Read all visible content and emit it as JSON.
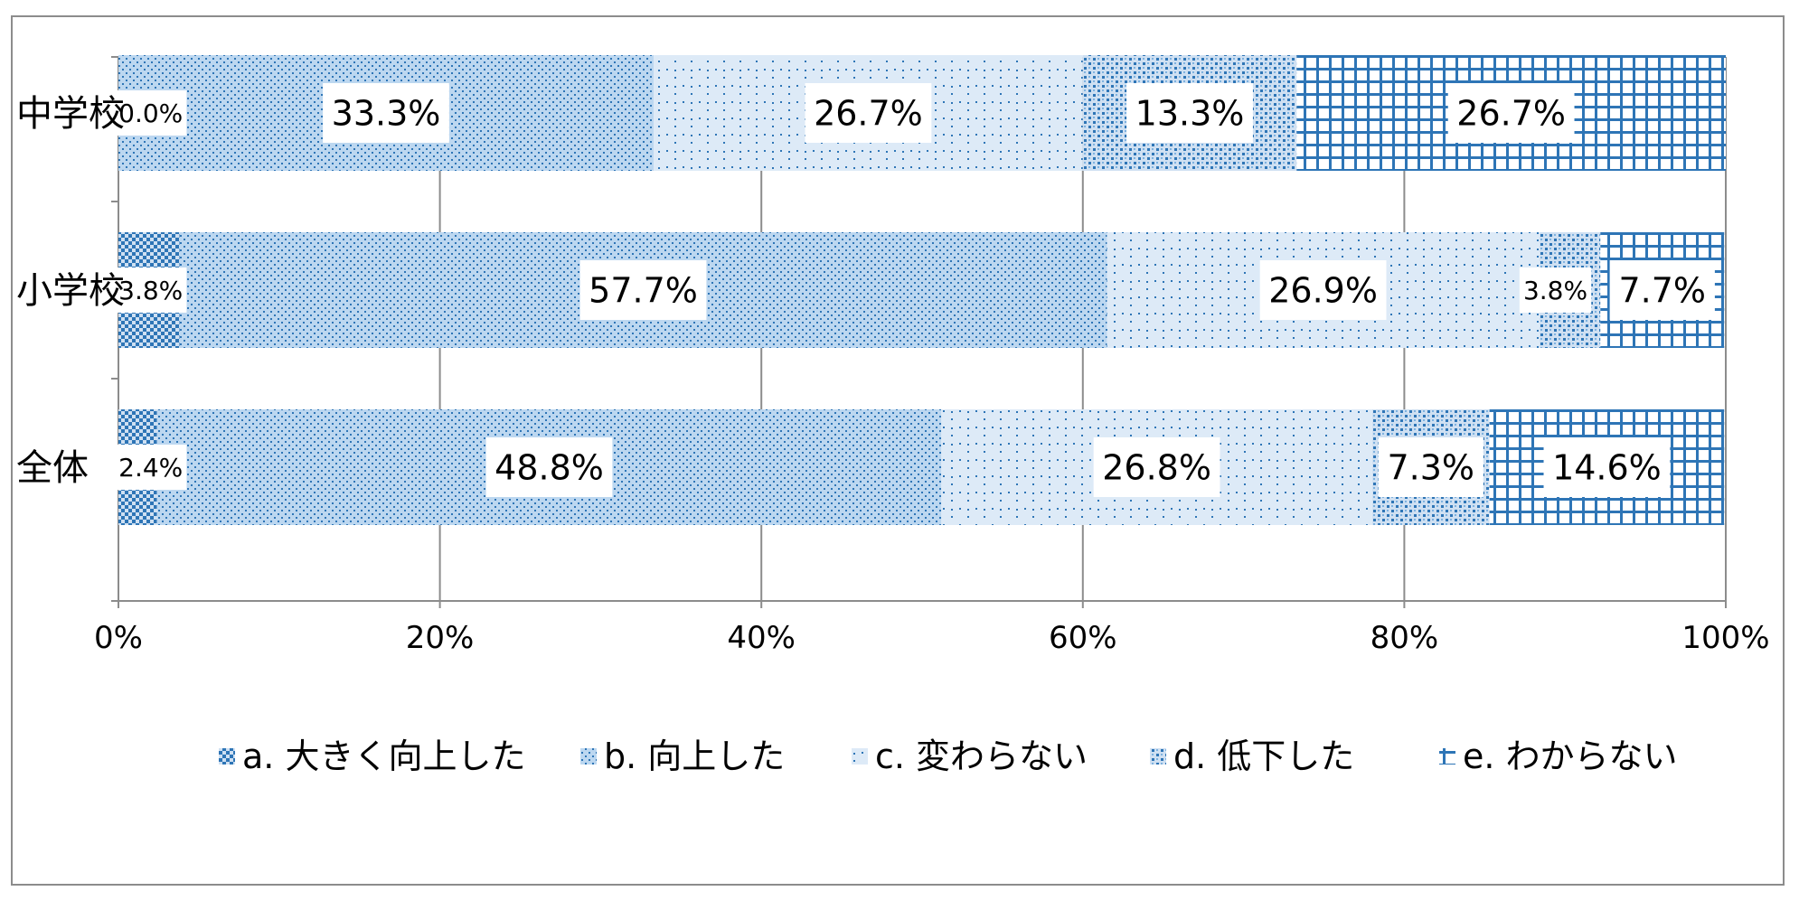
{
  "chart_data": {
    "type": "bar",
    "orientation": "horizontal",
    "stacked": "percent",
    "categories": [
      "中学校",
      "小学校",
      "全体"
    ],
    "series": [
      {
        "name": "a. 大きく向上した",
        "values": [
          0.0,
          3.8,
          2.4
        ],
        "labels": [
          "0.0%",
          "3.8%",
          "2.4%"
        ],
        "color": "#5b9bd5",
        "pattern": "dense-checker"
      },
      {
        "name": "b. 向上した",
        "values": [
          33.3,
          57.7,
          48.8
        ],
        "labels": [
          "33.3%",
          "57.7%",
          "48.8%"
        ],
        "color": "#5b9bd5",
        "pattern": "small-dots"
      },
      {
        "name": "c. 変わらない",
        "values": [
          26.7,
          26.9,
          26.8
        ],
        "labels": [
          "26.7%",
          "26.9%",
          "26.8%"
        ],
        "color": "#5b9bd5",
        "pattern": "sparse-dots"
      },
      {
        "name": "d. 低下した",
        "values": [
          13.3,
          3.8,
          7.3
        ],
        "labels": [
          "13.3%",
          "3.8%",
          "7.3%"
        ],
        "color": "#5b9bd5",
        "pattern": "checker"
      },
      {
        "name": "e. わからない",
        "values": [
          26.7,
          7.7,
          14.6
        ],
        "labels": [
          "26.7%",
          "7.7%",
          "14.6%"
        ],
        "color": "#2e75b6",
        "pattern": "grid"
      }
    ],
    "xlim": [
      0,
      100
    ],
    "x_ticks": [
      "0%",
      "20%",
      "40%",
      "60%",
      "80%",
      "100%"
    ],
    "grid": true,
    "legend_position": "bottom",
    "title": "",
    "xlabel": "",
    "ylabel": ""
  }
}
